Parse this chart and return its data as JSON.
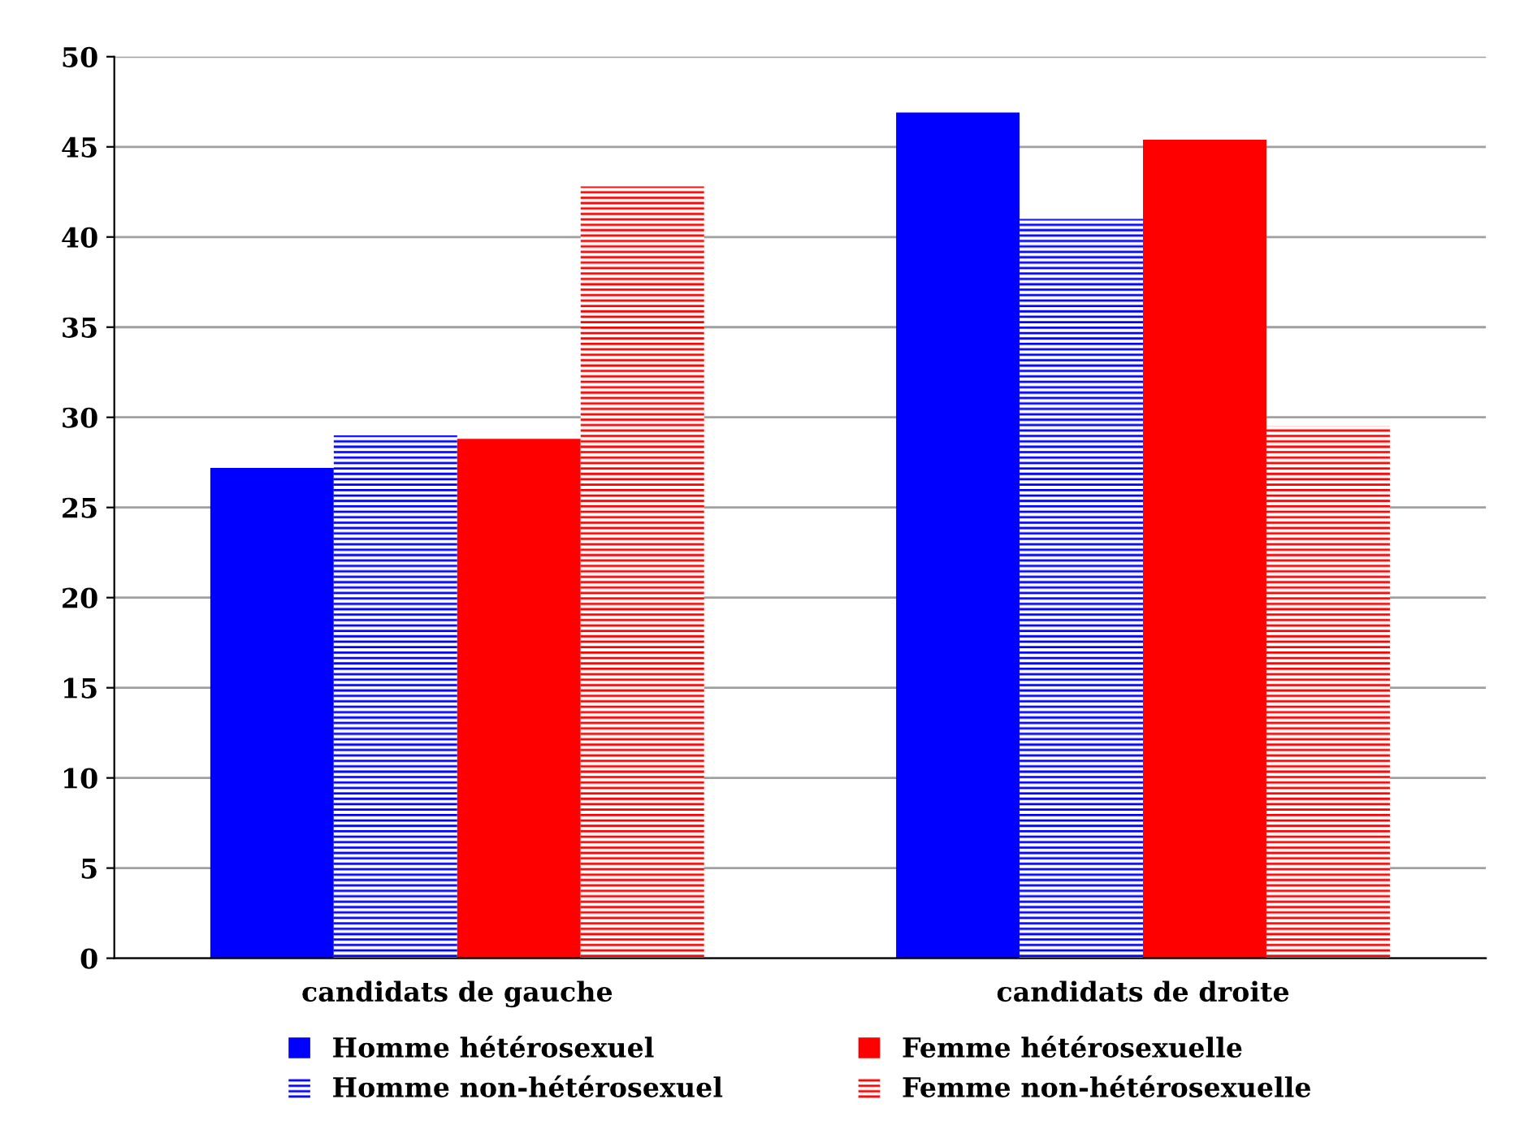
{
  "chart_data": {
    "type": "bar",
    "categories": [
      "candidats de gauche",
      "candidats de droite"
    ],
    "series": [
      {
        "name": "Homme hétérosexuel",
        "color": "#0000ff",
        "values": [
          27.2,
          46.9
        ]
      },
      {
        "name": "Homme non-hétérosexuel",
        "color": "#0000ff",
        "values": [
          29.0,
          41.0
        ]
      },
      {
        "name": "Femme hétérosexuelle",
        "color": "#ff0000",
        "values": [
          28.8,
          45.4
        ]
      },
      {
        "name": "Femme non-hétérosexuelle",
        "color": "#ff0000",
        "values": [
          42.8,
          29.5
        ]
      }
    ],
    "ylim": [
      0,
      50
    ],
    "yticks": [
      0,
      5,
      10,
      15,
      20,
      25,
      30,
      35,
      40,
      45,
      50
    ],
    "grid": "y",
    "legend": "bottom"
  }
}
